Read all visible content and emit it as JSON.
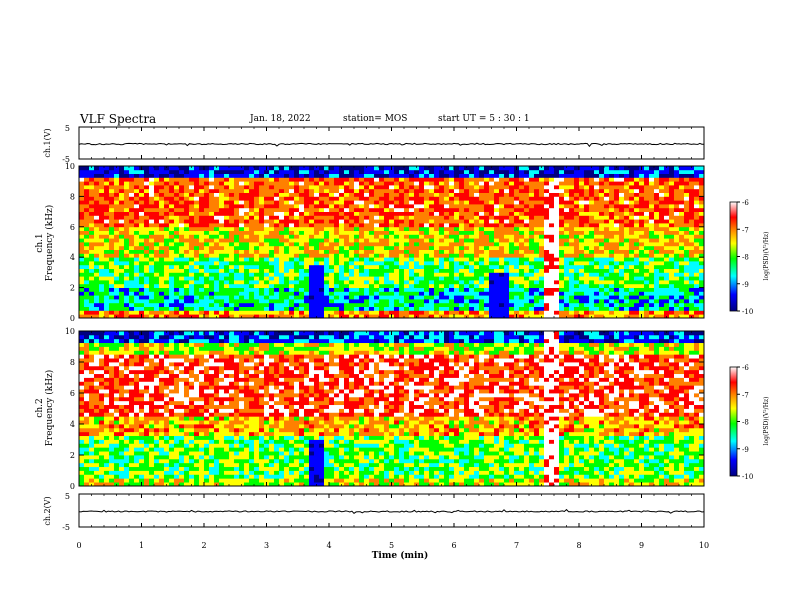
{
  "header": {
    "title": "VLF Spectra",
    "date": "Jan. 18, 2022",
    "station": "station= MOS",
    "start": "start  UT =  5 : 30 : 1"
  },
  "chart_data": [
    {
      "type": "line",
      "panel": "ch1-waveform",
      "ylabel": "ch.1(V)",
      "ylim": [
        -5,
        5
      ],
      "yticks": [
        "5",
        "-5"
      ],
      "xlim": [
        0,
        10
      ]
    },
    {
      "type": "heatmap",
      "panel": "ch1-spectrogram",
      "ylabel": "ch.1\nFrequency  (kHz)",
      "ylim": [
        0,
        10
      ],
      "yticks": [
        "0",
        "2",
        "4",
        "6",
        "8",
        "10"
      ],
      "xlim": [
        0,
        10
      ],
      "colorbar": {
        "label": "log(PSD)(V²/Hz)",
        "ticks": [
          "-6",
          "-7",
          "-8",
          "-9",
          "-10"
        ],
        "range": [
          -10,
          -6
        ]
      },
      "features": [
        {
          "kind": "gap",
          "t_start": 3.65,
          "t_end": 3.95,
          "f_max": 3.5
        },
        {
          "kind": "gap",
          "t_start": 6.6,
          "t_end": 6.85,
          "f_max": 3.0
        },
        {
          "kind": "burst",
          "t_start": 7.45,
          "t_end": 7.7,
          "f_max": 9.0
        }
      ]
    },
    {
      "type": "heatmap",
      "panel": "ch2-spectrogram",
      "ylabel": "ch.2\nFrequency  (kHz)",
      "ylim": [
        0,
        10
      ],
      "yticks": [
        "0",
        "2",
        "4",
        "6",
        "8",
        "10"
      ],
      "xlim": [
        0,
        10
      ],
      "colorbar": {
        "label": "log(PSD)(V²/Hz)",
        "ticks": [
          "-6",
          "-7",
          "-8",
          "-9",
          "-10"
        ],
        "range": [
          -10,
          -6
        ]
      },
      "features": [
        {
          "kind": "gap",
          "t_start": 3.65,
          "t_end": 3.95,
          "f_max": 3.0
        },
        {
          "kind": "burst",
          "t_start": 7.45,
          "t_end": 7.7,
          "f_max": 10.0
        }
      ]
    },
    {
      "type": "line",
      "panel": "ch2-waveform",
      "ylabel": "ch.2(V)",
      "ylim": [
        -5,
        5
      ],
      "yticks": [
        "5",
        "-5"
      ],
      "xlim": [
        0,
        10
      ]
    }
  ],
  "xaxis": {
    "label": "Time  (min)",
    "ticks": [
      "0",
      "1",
      "2",
      "3",
      "4",
      "5",
      "6",
      "7",
      "8",
      "9",
      "10"
    ]
  },
  "colors": {
    "scale": [
      "#000080",
      "#0000ff",
      "#00ffff",
      "#00ff00",
      "#ffff00",
      "#ff8000",
      "#ff0000",
      "#ffffff"
    ]
  }
}
